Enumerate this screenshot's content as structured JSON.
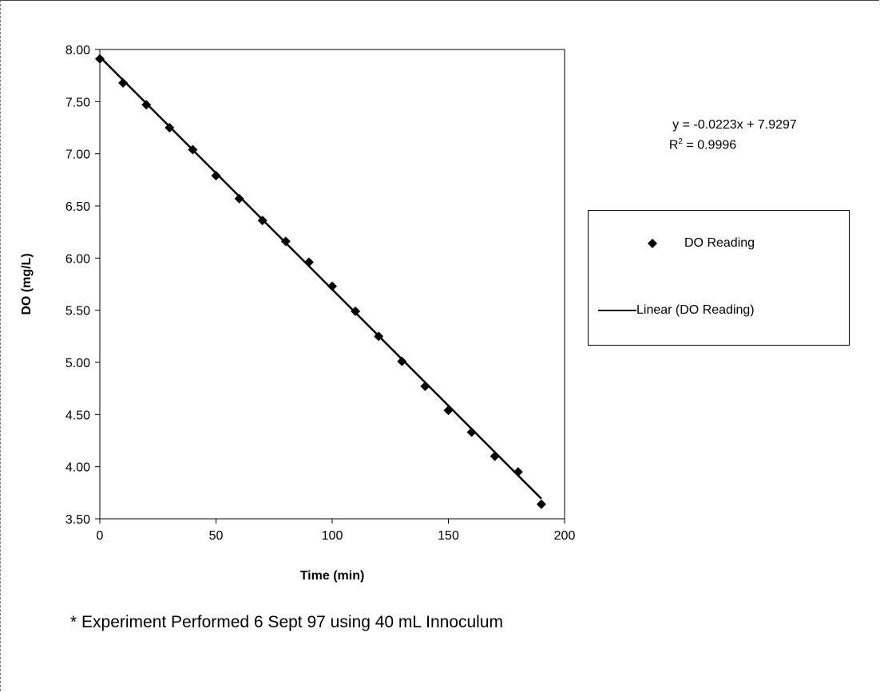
{
  "footnote": "* Experiment Performed 6 Sept 97 using 40 mL Innoculum",
  "trendline_label": {
    "equation": "y = -0.0223x + 7.9297",
    "r2_prefix": "R",
    "r2_sup": "2",
    "r2_value": " = 0.9996"
  },
  "colors": {
    "marker": "#000000",
    "line": "#000000"
  },
  "chart_data": {
    "type": "scatter",
    "title": "",
    "xlabel": "Time (min)",
    "ylabel": "DO (mg/L)",
    "xlim": [
      0,
      200
    ],
    "ylim": [
      3.5,
      8.0
    ],
    "xticks": [
      0,
      50,
      100,
      150,
      200
    ],
    "xtick_labels": [
      "0",
      "50",
      "100",
      "150",
      "200"
    ],
    "yticks": [
      3.5,
      4.0,
      4.5,
      5.0,
      5.5,
      6.0,
      6.5,
      7.0,
      7.5,
      8.0
    ],
    "ytick_labels": [
      "3.50",
      "4.00",
      "4.50",
      "5.00",
      "5.50",
      "6.00",
      "6.50",
      "7.00",
      "7.50",
      "8.00"
    ],
    "grid": false,
    "legend_position": "right",
    "series": [
      {
        "name": "DO Reading",
        "marker": "diamond",
        "x": [
          0,
          10,
          20,
          30,
          40,
          50,
          60,
          70,
          80,
          90,
          100,
          110,
          120,
          130,
          140,
          150,
          160,
          170,
          180,
          190
        ],
        "y": [
          7.91,
          7.68,
          7.47,
          7.25,
          7.04,
          6.79,
          6.57,
          6.36,
          6.16,
          5.96,
          5.73,
          5.49,
          5.25,
          5.01,
          4.77,
          4.54,
          4.33,
          4.1,
          3.95,
          3.64
        ]
      },
      {
        "name": "Linear (DO Reading)",
        "marker": "none",
        "trendline": {
          "slope": -0.0223,
          "intercept": 7.9297,
          "x_range": [
            0,
            190
          ]
        }
      }
    ]
  }
}
